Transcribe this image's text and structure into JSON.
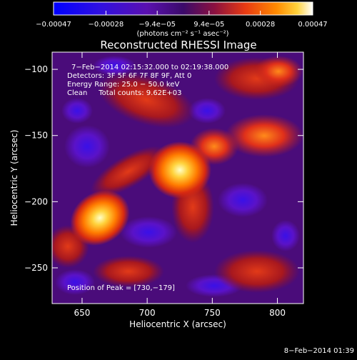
{
  "chart_data": {
    "type": "heatmap",
    "title": "Reconstructed RHESSI Image",
    "xlabel": "Heliocentric X (arcsec)",
    "ylabel": "Heliocentric Y (arcsec)",
    "xlim": [
      627,
      820
    ],
    "ylim": [
      -277,
      -87
    ],
    "x_ticks": [
      650,
      700,
      750,
      800
    ],
    "y_ticks": [
      -100,
      -150,
      -200,
      -250
    ],
    "x_tick_labels": [
      "650",
      "700",
      "750",
      "800"
    ],
    "y_tick_labels": [
      "−100",
      "−150",
      "−200",
      "−250"
    ],
    "colorbar": {
      "min": -0.00047,
      "max": 0.00047,
      "tick_values": [
        -0.00047,
        -0.00028,
        -9.4e-05,
        9.4e-05,
        0.00028,
        0.00047
      ],
      "tick_labels": [
        "−0.00047",
        "−0.00028",
        "−9.4e−05",
        "9.4e−05",
        "0.00028",
        "0.00047"
      ],
      "unit_label": "(photons cm⁻² s⁻¹ asec⁻²)"
    },
    "annotations": {
      "time_range": "7−Feb−2014 02:15:32.000 to 02:19:38.000",
      "detectors": "Detectors: 3F 5F 6F 7F 8F 9F, Att 0",
      "energy": "Energy Range: 25.0 − 50.0 keV",
      "method": "Clean     Total counts: 9.62E+03",
      "peak": "Position of Peak = [730,−179]"
    },
    "peak_position": [
      730,
      -179
    ],
    "total_counts": 9620,
    "grid": false,
    "colors": {
      "background": "#000000",
      "frame": "#ffffff",
      "negative": "#0000ff",
      "zero": "#3b0a6a",
      "positive_mid": "#e83a12",
      "positive_max": "#ffffff"
    }
  },
  "footer_timestamp": "8−Feb−2014 01:39"
}
